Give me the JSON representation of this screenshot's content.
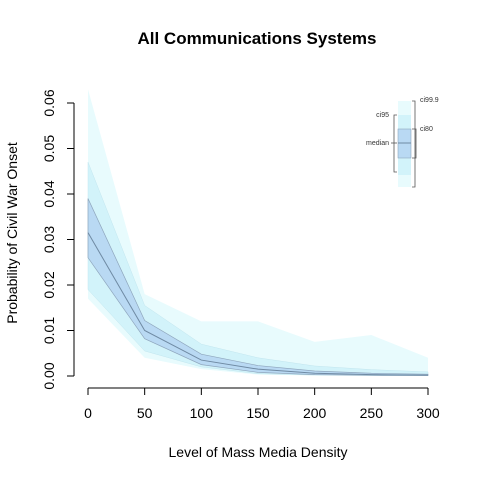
{
  "chart_data": {
    "type": "area",
    "title": "All Communications Systems",
    "xlabel": "Level of Mass Media Density",
    "ylabel": "Probability of Civil War Onset",
    "x": [
      0,
      50,
      100,
      150,
      200,
      250,
      300
    ],
    "xlim": [
      0,
      300
    ],
    "ylim": [
      0,
      0.06
    ],
    "xticks": [
      "0",
      "50",
      "100",
      "150",
      "200",
      "250",
      "300"
    ],
    "yticks": [
      "0.00",
      "0.01",
      "0.02",
      "0.03",
      "0.04",
      "0.05",
      "0.06"
    ],
    "grid": false,
    "legend_position": "top-right",
    "bands": [
      {
        "name": "ci99.9",
        "lower": [
          0.017,
          0.004,
          0.0015,
          0.0003,
          0.0001,
          5e-05,
          2e-05
        ],
        "upper": [
          0.063,
          0.018,
          0.012,
          0.012,
          0.0075,
          0.009,
          0.004
        ],
        "color": "#e8fbfd"
      },
      {
        "name": "ci95",
        "lower": [
          0.019,
          0.0055,
          0.002,
          0.0005,
          0.0002,
          0.0001,
          5e-05
        ],
        "upper": [
          0.047,
          0.0155,
          0.007,
          0.004,
          0.0022,
          0.0014,
          0.0009
        ],
        "color": "#d2f3fa"
      },
      {
        "name": "ci80",
        "lower": [
          0.026,
          0.0082,
          0.0025,
          0.0008,
          0.0003,
          0.00015,
          0.0001
        ],
        "upper": [
          0.039,
          0.0122,
          0.0048,
          0.0023,
          0.0011,
          0.0006,
          0.0004
        ],
        "color": "#b9d9f3"
      }
    ],
    "median": {
      "name": "median",
      "values": [
        0.0315,
        0.01,
        0.0035,
        0.0015,
        0.0006,
        0.0003,
        0.0002
      ],
      "color": "#6f8aa3"
    },
    "legend": {
      "labels": {
        "ci999": "ci99.9",
        "ci95": "ci95",
        "ci80": "ci80",
        "median": "median"
      }
    }
  }
}
